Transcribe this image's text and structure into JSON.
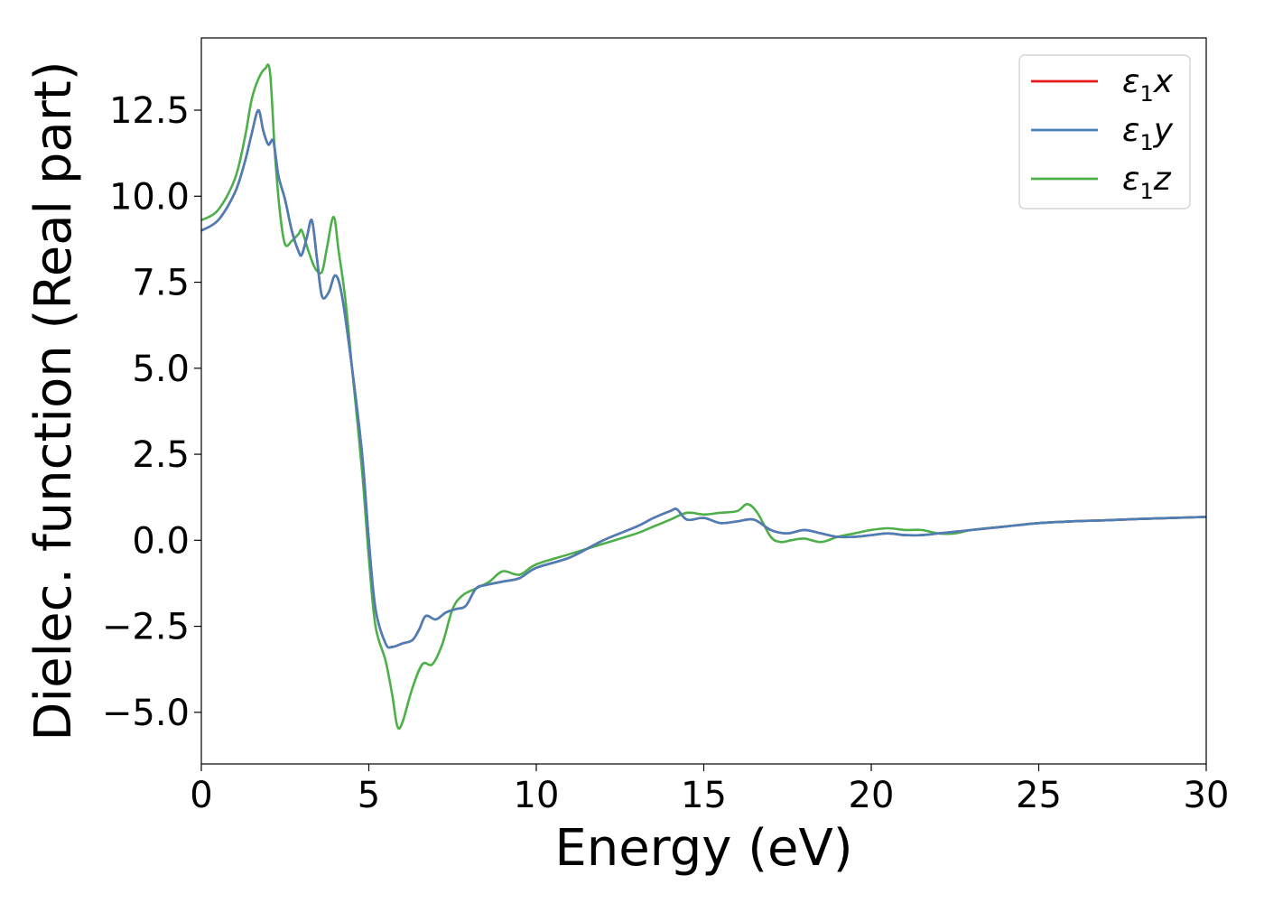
{
  "chart_data": {
    "type": "line",
    "title": "",
    "xlabel": "Energy (eV)",
    "ylabel": "Dielec. function (Real part)",
    "xlim": [
      0,
      30
    ],
    "ylim": [
      -6.5,
      14.6
    ],
    "x_ticks": [
      0,
      5,
      10,
      15,
      20,
      25,
      30
    ],
    "x_tick_labels": [
      "0",
      "5",
      "10",
      "15",
      "20",
      "25",
      "30"
    ],
    "y_ticks": [
      -5.0,
      -2.5,
      0.0,
      2.5,
      5.0,
      7.5,
      10.0,
      12.5
    ],
    "y_tick_labels": [
      "−5.0",
      "−2.5",
      "0.0",
      "2.5",
      "5.0",
      "7.5",
      "10.0",
      "12.5"
    ],
    "grid": false,
    "legend_position": "top-right",
    "series": [
      {
        "name": "ε1x",
        "name_base": "ε",
        "name_sub": "1",
        "name_tail": "x",
        "color": "#e41a1c",
        "x": [
          0,
          0.5,
          1.0,
          1.3,
          1.5,
          1.7,
          1.85,
          2.0,
          2.15,
          2.3,
          2.5,
          2.7,
          2.9,
          3.0,
          3.15,
          3.3,
          3.45,
          3.6,
          3.8,
          4.0,
          4.2,
          4.5,
          4.8,
          5.0,
          5.2,
          5.5,
          5.7,
          6.0,
          6.3,
          6.5,
          6.7,
          7.0,
          7.3,
          7.6,
          7.9,
          8.2,
          8.5,
          9.0,
          9.5,
          10.0,
          11.0,
          12.0,
          13.0,
          13.5,
          14.0,
          14.2,
          14.5,
          15.0,
          15.5,
          16.0,
          16.5,
          17.0,
          17.5,
          18.0,
          18.5,
          19.0,
          19.5,
          20.0,
          20.5,
          21.0,
          21.5,
          22.0,
          22.5,
          23.0,
          24.0,
          25.0,
          26.0,
          27.0,
          28.0,
          29.0,
          30.0
        ],
        "y": [
          9.0,
          9.3,
          10.1,
          11.0,
          11.8,
          12.5,
          11.9,
          11.5,
          11.6,
          10.6,
          9.9,
          9.0,
          8.4,
          8.3,
          8.8,
          9.3,
          8.2,
          7.1,
          7.2,
          7.7,
          7.1,
          5.0,
          2.5,
          0.0,
          -2.0,
          -3.0,
          -3.1,
          -3.0,
          -2.9,
          -2.6,
          -2.2,
          -2.3,
          -2.1,
          -2.0,
          -1.9,
          -1.4,
          -1.3,
          -1.2,
          -1.1,
          -0.8,
          -0.5,
          0.0,
          0.4,
          0.65,
          0.85,
          0.9,
          0.6,
          0.65,
          0.5,
          0.55,
          0.6,
          0.3,
          0.2,
          0.3,
          0.2,
          0.1,
          0.1,
          0.15,
          0.2,
          0.15,
          0.15,
          0.2,
          0.25,
          0.3,
          0.4,
          0.5,
          0.55,
          0.58,
          0.62,
          0.65,
          0.68
        ]
      },
      {
        "name": "ε1y",
        "name_base": "ε",
        "name_sub": "1",
        "name_tail": "y",
        "color": "#4a7fb8",
        "x": [
          0,
          0.5,
          1.0,
          1.3,
          1.5,
          1.7,
          1.85,
          2.0,
          2.15,
          2.3,
          2.5,
          2.7,
          2.9,
          3.0,
          3.15,
          3.3,
          3.45,
          3.6,
          3.8,
          4.0,
          4.2,
          4.5,
          4.8,
          5.0,
          5.2,
          5.5,
          5.7,
          6.0,
          6.3,
          6.5,
          6.7,
          7.0,
          7.3,
          7.6,
          7.9,
          8.2,
          8.5,
          9.0,
          9.5,
          10.0,
          11.0,
          12.0,
          13.0,
          13.5,
          14.0,
          14.2,
          14.5,
          15.0,
          15.5,
          16.0,
          16.5,
          17.0,
          17.5,
          18.0,
          18.5,
          19.0,
          19.5,
          20.0,
          20.5,
          21.0,
          21.5,
          22.0,
          22.5,
          23.0,
          24.0,
          25.0,
          26.0,
          27.0,
          28.0,
          29.0,
          30.0
        ],
        "y": [
          9.0,
          9.3,
          10.1,
          11.0,
          11.8,
          12.5,
          11.9,
          11.5,
          11.6,
          10.6,
          9.9,
          9.0,
          8.4,
          8.3,
          8.8,
          9.3,
          8.2,
          7.1,
          7.2,
          7.7,
          7.1,
          5.0,
          2.5,
          0.0,
          -2.0,
          -3.0,
          -3.1,
          -3.0,
          -2.9,
          -2.6,
          -2.2,
          -2.3,
          -2.1,
          -2.0,
          -1.9,
          -1.4,
          -1.3,
          -1.2,
          -1.1,
          -0.8,
          -0.5,
          0.0,
          0.4,
          0.65,
          0.85,
          0.9,
          0.6,
          0.65,
          0.5,
          0.55,
          0.6,
          0.3,
          0.2,
          0.3,
          0.2,
          0.1,
          0.1,
          0.15,
          0.2,
          0.15,
          0.15,
          0.2,
          0.25,
          0.3,
          0.4,
          0.5,
          0.55,
          0.58,
          0.62,
          0.65,
          0.68
        ]
      },
      {
        "name": "ε1z",
        "name_base": "ε",
        "name_sub": "1",
        "name_tail": "z",
        "color": "#4daf4a",
        "x": [
          0,
          0.5,
          1.0,
          1.3,
          1.5,
          1.7,
          1.9,
          2.05,
          2.2,
          2.35,
          2.5,
          2.7,
          2.9,
          3.0,
          3.2,
          3.4,
          3.6,
          3.75,
          3.95,
          4.1,
          4.3,
          4.5,
          4.8,
          5.0,
          5.2,
          5.5,
          5.7,
          5.85,
          6.0,
          6.3,
          6.6,
          6.9,
          7.2,
          7.5,
          7.8,
          8.2,
          8.6,
          9.0,
          9.5,
          10.0,
          11.0,
          12.0,
          13.0,
          13.5,
          14.0,
          14.5,
          15.0,
          15.5,
          16.0,
          16.3,
          16.6,
          17.0,
          17.3,
          17.6,
          18.0,
          18.5,
          19.0,
          19.5,
          20.0,
          20.5,
          21.0,
          21.5,
          22.0,
          22.5,
          23.0,
          24.0,
          25.0,
          26.0,
          27.0,
          28.0,
          29.0,
          30.0
        ],
        "y": [
          9.3,
          9.6,
          10.5,
          11.7,
          12.8,
          13.4,
          13.7,
          13.6,
          11.2,
          9.5,
          8.6,
          8.7,
          8.9,
          9.0,
          8.4,
          7.9,
          7.8,
          8.5,
          9.4,
          8.4,
          7.0,
          5.0,
          2.0,
          -0.5,
          -2.5,
          -3.5,
          -4.5,
          -5.4,
          -5.3,
          -4.3,
          -3.6,
          -3.6,
          -3.0,
          -2.0,
          -1.6,
          -1.4,
          -1.2,
          -0.9,
          -1.0,
          -0.7,
          -0.4,
          -0.1,
          0.2,
          0.4,
          0.6,
          0.8,
          0.75,
          0.8,
          0.85,
          1.05,
          0.8,
          0.1,
          -0.05,
          0.0,
          0.05,
          -0.05,
          0.1,
          0.2,
          0.3,
          0.35,
          0.3,
          0.3,
          0.2,
          0.2,
          0.3,
          0.4,
          0.5,
          0.55,
          0.58,
          0.62,
          0.65,
          0.68
        ]
      }
    ]
  }
}
